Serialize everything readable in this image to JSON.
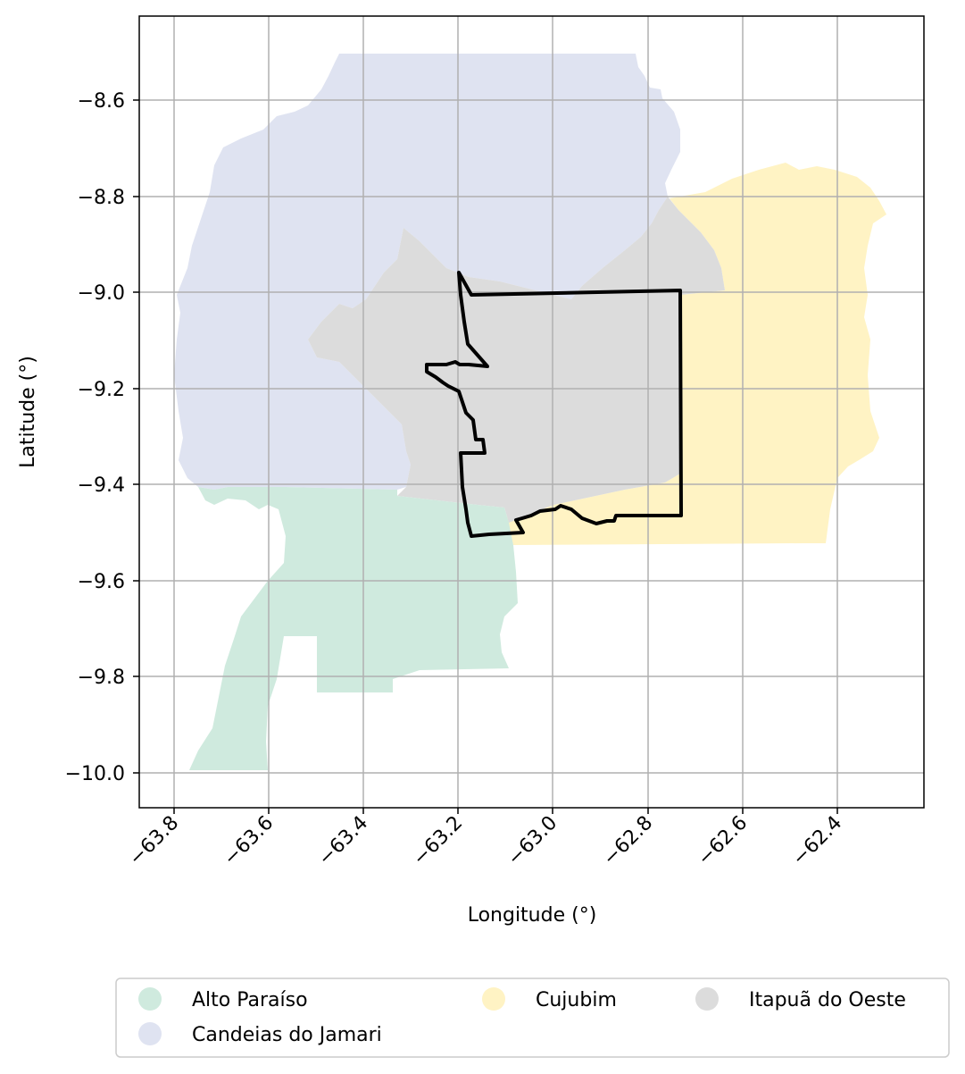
{
  "map": {
    "xlabel": "Longitude (°)",
    "ylabel": "Latitude (°)",
    "x_ticks": [
      "−63.8",
      "−63.6",
      "−63.4",
      "−63.2",
      "−63.0",
      "−62.8",
      "−62.6",
      "−62.4"
    ],
    "y_ticks": [
      "−8.6",
      "−8.8",
      "−9.0",
      "−9.2",
      "−9.4",
      "−9.6",
      "−9.8",
      "−10.0"
    ],
    "grid": true,
    "colors": {
      "alto_paraiso": "#cfeade",
      "candeias_do_jamari": "#dfe3f1",
      "cujubim": "#fff3c4",
      "itapua_do_oeste": "#dcdcdc",
      "highlight_outline": "#000000"
    },
    "legend": {
      "placement": "bottom",
      "items": [
        {
          "label": "Alto Paraíso",
          "color": "#cfeade"
        },
        {
          "label": "Cujubim",
          "color": "#fff3c4"
        },
        {
          "label": "Itapuã do Oeste",
          "color": "#dcdcdc"
        },
        {
          "label": "Candeias do Jamari",
          "color": "#dfe3f1"
        }
      ]
    }
  }
}
